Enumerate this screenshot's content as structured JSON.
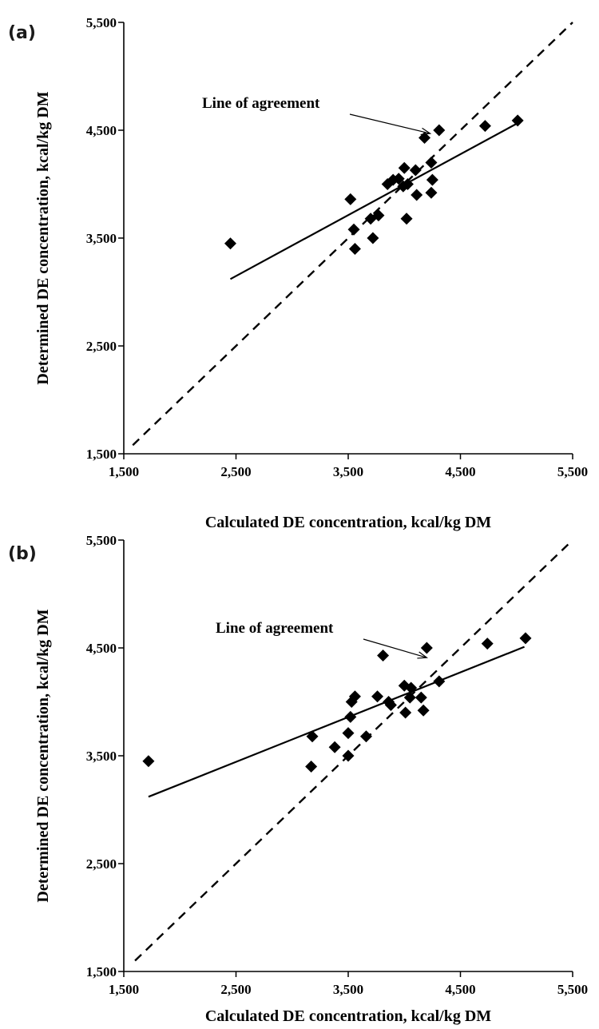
{
  "chart_data": [
    {
      "panel_label": "(a)",
      "type": "scatter",
      "xlabel": "Calculated DE concentration, kcal/kg DM",
      "ylabel": "Determined DE concentration, kcal/kg DM",
      "xlim": [
        1500,
        5500
      ],
      "ylim": [
        1500,
        5500
      ],
      "xticks": [
        "1,500",
        "2,500",
        "3,500",
        "4,500",
        "5,500"
      ],
      "yticks": [
        "1,500",
        "2,500",
        "3,500",
        "4,500",
        "5,500"
      ],
      "xtick_values": [
        1500,
        2500,
        3500,
        4500,
        5500
      ],
      "ytick_values": [
        1500,
        2500,
        3500,
        4500,
        5500
      ],
      "points": [
        [
          2450,
          3450
        ],
        [
          3520,
          3860
        ],
        [
          3550,
          3580
        ],
        [
          3560,
          3400
        ],
        [
          3720,
          3500
        ],
        [
          3700,
          3680
        ],
        [
          3770,
          3710
        ],
        [
          3850,
          4000
        ],
        [
          3900,
          4040
        ],
        [
          3950,
          4050
        ],
        [
          4000,
          4150
        ],
        [
          3990,
          3980
        ],
        [
          4030,
          4000
        ],
        [
          4020,
          3680
        ],
        [
          4100,
          4130
        ],
        [
          4110,
          3900
        ],
        [
          4180,
          4430
        ],
        [
          4240,
          4200
        ],
        [
          4250,
          4040
        ],
        [
          4240,
          3920
        ],
        [
          4310,
          4500
        ],
        [
          4720,
          4540
        ],
        [
          5010,
          4590
        ]
      ],
      "regression": {
        "x": [
          2450,
          5000
        ],
        "y": [
          3120,
          4560
        ]
      },
      "agreement": {
        "x": [
          1580,
          5500
        ],
        "y": [
          1580,
          5500
        ]
      },
      "annotation": "Line of agreement",
      "annotation_target": [
        4230,
        4470
      ]
    },
    {
      "panel_label": "(b)",
      "type": "scatter",
      "xlabel": "Calculated DE concentration, kcal/kg DM",
      "ylabel": "Determined DE concentration, kcal/kg DM",
      "xlim": [
        1500,
        5500
      ],
      "ylim": [
        1500,
        5500
      ],
      "xticks": [
        "1,500",
        "2,500",
        "3,500",
        "4,500",
        "5,500"
      ],
      "yticks": [
        "1,500",
        "2,500",
        "3,500",
        "4,500",
        "5,500"
      ],
      "xtick_values": [
        1500,
        2500,
        3500,
        4500,
        5500
      ],
      "ytick_values": [
        1500,
        2500,
        3500,
        4500,
        5500
      ],
      "points": [
        [
          1720,
          3450
        ],
        [
          3180,
          3680
        ],
        [
          3170,
          3400
        ],
        [
          3380,
          3580
        ],
        [
          3500,
          3710
        ],
        [
          3500,
          3500
        ],
        [
          3520,
          3860
        ],
        [
          3530,
          4000
        ],
        [
          3560,
          4050
        ],
        [
          3660,
          3680
        ],
        [
          3760,
          4050
        ],
        [
          3810,
          4430
        ],
        [
          3860,
          4000
        ],
        [
          3880,
          3970
        ],
        [
          4000,
          4150
        ],
        [
          4010,
          3900
        ],
        [
          4050,
          4040
        ],
        [
          4060,
          4130
        ],
        [
          4150,
          4040
        ],
        [
          4170,
          3920
        ],
        [
          4200,
          4500
        ],
        [
          4310,
          4190
        ],
        [
          4740,
          4540
        ],
        [
          5080,
          4590
        ]
      ],
      "regression": {
        "x": [
          1720,
          5070
        ],
        "y": [
          3120,
          4510
        ]
      },
      "agreement": {
        "x": [
          1600,
          5500
        ],
        "y": [
          1600,
          5500
        ]
      },
      "annotation": "Line of agreement",
      "annotation_target": [
        4200,
        4410
      ]
    }
  ]
}
